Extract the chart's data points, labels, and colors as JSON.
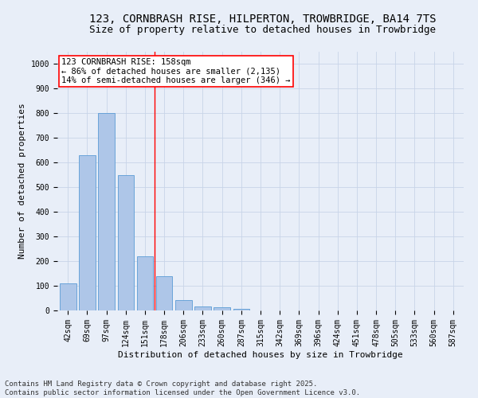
{
  "title_line1": "123, CORNBRASH RISE, HILPERTON, TROWBRIDGE, BA14 7TS",
  "title_line2": "Size of property relative to detached houses in Trowbridge",
  "xlabel": "Distribution of detached houses by size in Trowbridge",
  "ylabel": "Number of detached properties",
  "bar_labels": [
    "42sqm",
    "69sqm",
    "97sqm",
    "124sqm",
    "151sqm",
    "178sqm",
    "206sqm",
    "233sqm",
    "260sqm",
    "287sqm",
    "315sqm",
    "342sqm",
    "369sqm",
    "396sqm",
    "424sqm",
    "451sqm",
    "478sqm",
    "505sqm",
    "533sqm",
    "560sqm",
    "587sqm"
  ],
  "bar_values": [
    110,
    630,
    800,
    548,
    220,
    138,
    42,
    15,
    12,
    8,
    0,
    0,
    0,
    0,
    0,
    0,
    0,
    0,
    0,
    0,
    0
  ],
  "bar_color": "#aec6e8",
  "bar_edge_color": "#5a9bd5",
  "grid_color": "#c8d4e8",
  "background_color": "#e8eef8",
  "vline_x": 4.5,
  "vline_color": "red",
  "annotation_text": "123 CORNBRASH RISE: 158sqm\n← 86% of detached houses are smaller (2,135)\n14% of semi-detached houses are larger (346) →",
  "annotation_box_color": "white",
  "annotation_box_edgecolor": "red",
  "ylim": [
    0,
    1050
  ],
  "yticks": [
    0,
    100,
    200,
    300,
    400,
    500,
    600,
    700,
    800,
    900,
    1000
  ],
  "footer_line1": "Contains HM Land Registry data © Crown copyright and database right 2025.",
  "footer_line2": "Contains public sector information licensed under the Open Government Licence v3.0.",
  "title_fontsize": 10,
  "subtitle_fontsize": 9,
  "axis_label_fontsize": 8,
  "tick_fontsize": 7,
  "annotation_fontsize": 7.5,
  "footer_fontsize": 6.5
}
